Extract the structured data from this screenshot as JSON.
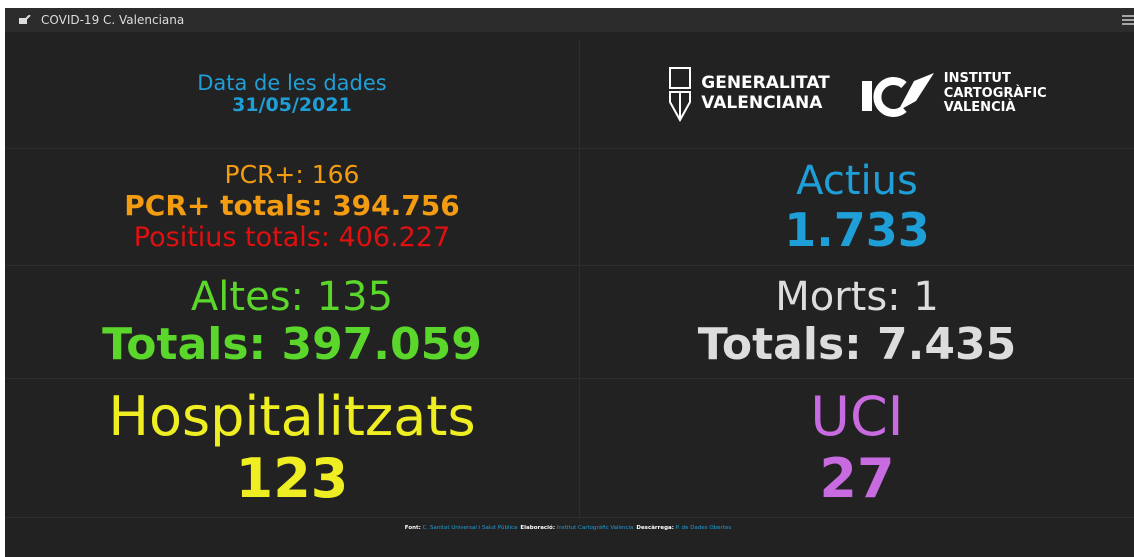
{
  "header": {
    "title": "COVID-19 C. Valenciana"
  },
  "date": {
    "label": "Data de les dades",
    "value": "31/05/2021"
  },
  "logos": [
    {
      "lines": [
        "GENERALITAT",
        "VALENCIANA"
      ]
    },
    {
      "lines": [
        "INSTITUT",
        "CARTOGRÀFIC",
        "VALENCIÀ"
      ]
    }
  ],
  "panels": {
    "pcr": {
      "daily": "PCR+: 166",
      "total": "PCR+ totals: 394.756",
      "positives": "Positius totals: 406.227"
    },
    "active": {
      "title": "Actius",
      "value": "1.733"
    },
    "discharges": {
      "daily": "Altes: 135",
      "total": "Totals: 397.059"
    },
    "deaths": {
      "daily": "Morts: 1",
      "total": "Totals: 7.435"
    },
    "hospital": {
      "title": "Hospitalitzats",
      "value": "123"
    },
    "icu": {
      "title": "UCI",
      "value": "27"
    }
  },
  "footer": [
    {
      "label": "Font:",
      "text": "C. Sanitat Universal i Salut Pública"
    },
    {
      "label": "Elaboració:",
      "text": "Institut Cartogràfic València"
    },
    {
      "label": "Descàrrega:",
      "text": "P. de Dades Obertes"
    }
  ]
}
